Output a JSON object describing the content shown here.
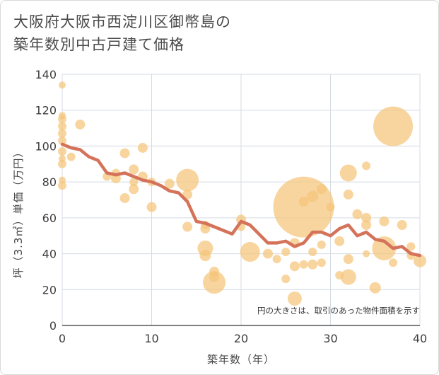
{
  "title_line1": "大阪府大阪市西淀川区御幣島の",
  "title_line2": "築年数別中古戸建て価格",
  "colors": {
    "bubble": "#f5c57a",
    "line": "#d4735a",
    "grid": "#d4dbe3",
    "axis": "#333333"
  },
  "chart_data": {
    "type": "scatter",
    "xlabel": "築年数（年）",
    "ylabel": "坪（3.3㎡）単価（万円）",
    "annotation": "円の大きさは、取引のあった物件面積を示す",
    "xlim": [
      0,
      40
    ],
    "ylim": [
      0,
      140
    ],
    "x_ticks": [
      0,
      10,
      20,
      30,
      40
    ],
    "y_ticks": [
      0,
      20,
      40,
      60,
      80,
      100,
      120,
      140
    ],
    "grid": true,
    "bubbles": [
      {
        "x": 0,
        "y": 134,
        "s": 5
      },
      {
        "x": 0,
        "y": 117,
        "s": 5
      },
      {
        "x": 0,
        "y": 115,
        "s": 6
      },
      {
        "x": 0,
        "y": 111,
        "s": 6
      },
      {
        "x": 0,
        "y": 107,
        "s": 6
      },
      {
        "x": 0,
        "y": 103,
        "s": 6
      },
      {
        "x": 0,
        "y": 97,
        "s": 6
      },
      {
        "x": 0,
        "y": 93,
        "s": 5
      },
      {
        "x": 0,
        "y": 90,
        "s": 6
      },
      {
        "x": 0,
        "y": 81,
        "s": 5
      },
      {
        "x": 0,
        "y": 78,
        "s": 6
      },
      {
        "x": 1,
        "y": 94,
        "s": 6
      },
      {
        "x": 2,
        "y": 112,
        "s": 7
      },
      {
        "x": 5,
        "y": 83,
        "s": 6
      },
      {
        "x": 6,
        "y": 82,
        "s": 7
      },
      {
        "x": 6,
        "y": 85,
        "s": 6
      },
      {
        "x": 7,
        "y": 96,
        "s": 7
      },
      {
        "x": 7,
        "y": 71,
        "s": 7
      },
      {
        "x": 8,
        "y": 87,
        "s": 7
      },
      {
        "x": 8,
        "y": 80,
        "s": 6
      },
      {
        "x": 8,
        "y": 76,
        "s": 7
      },
      {
        "x": 9,
        "y": 99,
        "s": 7
      },
      {
        "x": 9,
        "y": 83,
        "s": 7
      },
      {
        "x": 10,
        "y": 80,
        "s": 6
      },
      {
        "x": 10,
        "y": 66,
        "s": 7
      },
      {
        "x": 12,
        "y": 79,
        "s": 7
      },
      {
        "x": 14,
        "y": 81,
        "s": 16
      },
      {
        "x": 14,
        "y": 73,
        "s": 7
      },
      {
        "x": 14,
        "y": 55,
        "s": 7
      },
      {
        "x": 16,
        "y": 56,
        "s": 6
      },
      {
        "x": 16,
        "y": 54,
        "s": 7
      },
      {
        "x": 16,
        "y": 43,
        "s": 11
      },
      {
        "x": 16,
        "y": 39,
        "s": 8
      },
      {
        "x": 17,
        "y": 30,
        "s": 7
      },
      {
        "x": 17,
        "y": 27,
        "s": 7
      },
      {
        "x": 17,
        "y": 24,
        "s": 16
      },
      {
        "x": 20,
        "y": 59,
        "s": 7
      },
      {
        "x": 20,
        "y": 55,
        "s": 6
      },
      {
        "x": 21,
        "y": 41,
        "s": 14
      },
      {
        "x": 23,
        "y": 40,
        "s": 7
      },
      {
        "x": 24,
        "y": 37,
        "s": 6
      },
      {
        "x": 25,
        "y": 41,
        "s": 6
      },
      {
        "x": 25,
        "y": 26,
        "s": 6
      },
      {
        "x": 26,
        "y": 46,
        "s": 7
      },
      {
        "x": 26,
        "y": 33,
        "s": 7
      },
      {
        "x": 26,
        "y": 15,
        "s": 10
      },
      {
        "x": 27,
        "y": 66,
        "s": 43
      },
      {
        "x": 27,
        "y": 69,
        "s": 7
      },
      {
        "x": 27,
        "y": 34,
        "s": 6
      },
      {
        "x": 28,
        "y": 72,
        "s": 8
      },
      {
        "x": 28,
        "y": 41,
        "s": 6
      },
      {
        "x": 28,
        "y": 34,
        "s": 7
      },
      {
        "x": 29,
        "y": 76,
        "s": 7
      },
      {
        "x": 29,
        "y": 45,
        "s": 6
      },
      {
        "x": 29,
        "y": 35,
        "s": 6
      },
      {
        "x": 30,
        "y": 66,
        "s": 6
      },
      {
        "x": 31,
        "y": 47,
        "s": 7
      },
      {
        "x": 31,
        "y": 28,
        "s": 6
      },
      {
        "x": 32,
        "y": 85,
        "s": 12
      },
      {
        "x": 32,
        "y": 73,
        "s": 7
      },
      {
        "x": 32,
        "y": 37,
        "s": 7
      },
      {
        "x": 32,
        "y": 27,
        "s": 11
      },
      {
        "x": 33,
        "y": 62,
        "s": 7
      },
      {
        "x": 34,
        "y": 89,
        "s": 6
      },
      {
        "x": 34,
        "y": 60,
        "s": 7
      },
      {
        "x": 34,
        "y": 56,
        "s": 7
      },
      {
        "x": 34,
        "y": 40,
        "s": 5
      },
      {
        "x": 35,
        "y": 21,
        "s": 8
      },
      {
        "x": 36,
        "y": 58,
        "s": 7
      },
      {
        "x": 36,
        "y": 43,
        "s": 17
      },
      {
        "x": 37,
        "y": 111,
        "s": 28
      },
      {
        "x": 37,
        "y": 35,
        "s": 6
      },
      {
        "x": 38,
        "y": 56,
        "s": 7
      },
      {
        "x": 39,
        "y": 44,
        "s": 6
      },
      {
        "x": 39,
        "y": 39,
        "s": 6
      },
      {
        "x": 40,
        "y": 36,
        "s": 9
      }
    ],
    "series": [
      {
        "x": [
          0,
          1,
          2,
          3,
          4,
          5,
          6,
          7,
          8,
          9,
          10,
          11,
          12,
          13,
          14,
          15,
          16,
          17,
          18,
          19,
          20,
          21,
          22,
          23,
          24,
          25,
          26,
          27,
          28,
          29,
          30,
          31,
          32,
          33,
          34,
          35,
          36,
          37,
          38,
          39,
          40
        ],
        "values": [
          101,
          99,
          98,
          94,
          92,
          85,
          84,
          85,
          83,
          81,
          80,
          78,
          75,
          74,
          69,
          58,
          57,
          55,
          53,
          51,
          58,
          56,
          51,
          46,
          46,
          47,
          44,
          46,
          52,
          52,
          50,
          54,
          56,
          50,
          52,
          48,
          47,
          43,
          44,
          40,
          39
        ]
      }
    ]
  }
}
